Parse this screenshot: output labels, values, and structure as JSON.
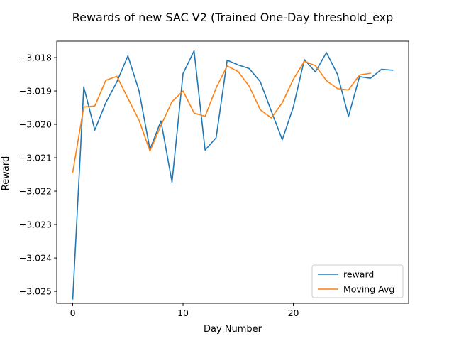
{
  "chart_data": {
    "type": "line",
    "title": "Rewards of new SAC V2 (Trained One-Day threshold_exp",
    "xlabel": "Day Number",
    "ylabel": "Reward",
    "xlim": [
      -1.45,
      30.45
    ],
    "ylim": [
      -3.02536,
      -3.01751
    ],
    "x_ticks": [
      0,
      10,
      20
    ],
    "y_ticks": [
      -3.025,
      -3.024,
      -3.023,
      -3.022,
      -3.021,
      -3.02,
      -3.019,
      -3.018
    ],
    "y_tick_labels": [
      "−3.025",
      "−3.024",
      "−3.023",
      "−3.022",
      "−3.021",
      "−3.020",
      "−3.019",
      "−3.018"
    ],
    "grid": false,
    "legend_position": "lower-right",
    "series": [
      {
        "name": "reward",
        "color": "#1f77b4",
        "x": [
          0,
          1,
          2,
          3,
          4,
          5,
          6,
          7,
          8,
          9,
          10,
          11,
          12,
          13,
          14,
          15,
          16,
          17,
          18,
          19,
          20,
          21,
          22,
          23,
          24,
          25,
          26,
          27,
          28,
          29
        ],
        "values": [
          -3.02523,
          -3.01888,
          -3.02017,
          -3.01935,
          -3.01873,
          -3.01795,
          -3.01898,
          -3.02075,
          -3.0199,
          -3.02173,
          -3.01848,
          -3.0178,
          -3.02077,
          -3.0204,
          -3.01808,
          -3.01822,
          -3.01833,
          -3.01872,
          -3.0196,
          -3.02046,
          -3.01948,
          -3.01806,
          -3.01843,
          -3.01785,
          -3.0185,
          -3.01976,
          -3.01857,
          -3.01862,
          -3.01835,
          -3.01838
        ]
      },
      {
        "name": "Moving Avg",
        "color": "#ff7f0e",
        "x": [
          0,
          1,
          2,
          3,
          4,
          5,
          6,
          7,
          8,
          9,
          10,
          11,
          12,
          13,
          14,
          15,
          16,
          17,
          18,
          19,
          20,
          21,
          22,
          23,
          24,
          25,
          26,
          27
        ],
        "values": [
          -3.02143,
          -3.01948,
          -3.01945,
          -3.01868,
          -3.01856,
          -3.01922,
          -3.01987,
          -3.0208,
          -3.02003,
          -3.01932,
          -3.019,
          -3.01966,
          -3.01976,
          -3.01891,
          -3.01825,
          -3.01842,
          -3.01886,
          -3.01956,
          -3.01981,
          -3.01935,
          -3.01865,
          -3.01811,
          -3.01824,
          -3.01869,
          -3.01893,
          -3.01897,
          -3.01852,
          -3.01847
        ]
      }
    ]
  }
}
